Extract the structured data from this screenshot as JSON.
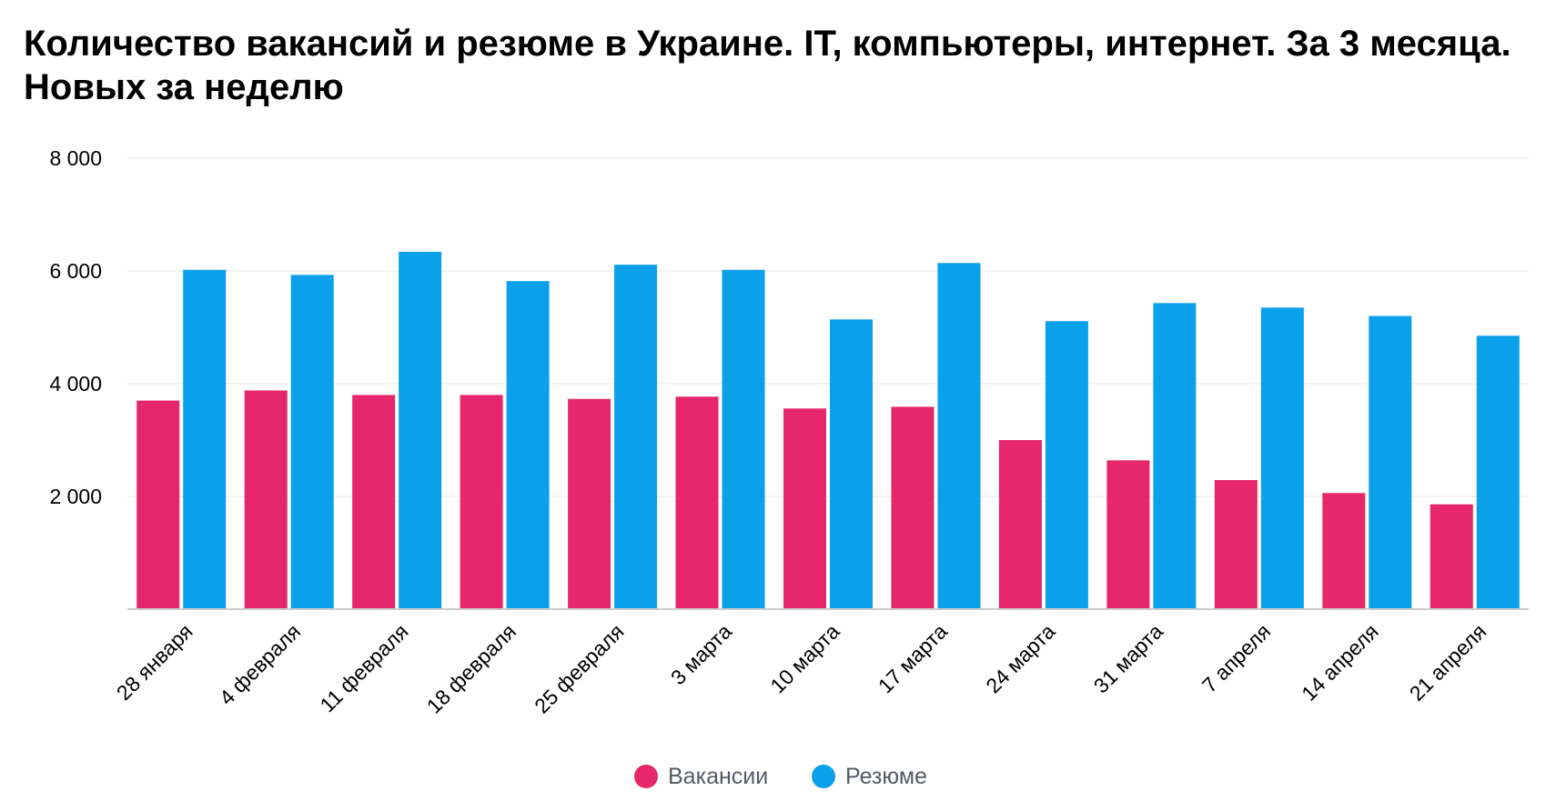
{
  "chart_data": {
    "type": "bar",
    "title": "Количество вакансий и резюме в Украине. IT, компьютеры, интернет. За 3 месяца. Новых за неделю",
    "xlabel": "",
    "ylabel": "",
    "ylim": [
      0,
      8000
    ],
    "yticks": [
      2000,
      4000,
      6000,
      8000
    ],
    "ytick_labels": [
      "2 000",
      "4 000",
      "6 000",
      "8 000"
    ],
    "grid": true,
    "legend_position": "bottom-center",
    "categories": [
      "28 января",
      "4 февраля",
      "11 февраля",
      "18 февраля",
      "25 февраля",
      "3 марта",
      "10 марта",
      "17 марта",
      "24 марта",
      "31 марта",
      "7 апреля",
      "14 апреля",
      "21 апреля"
    ],
    "series": [
      {
        "name": "Вакансии",
        "color": "#e6276b",
        "values": [
          3700,
          3880,
          3800,
          3800,
          3730,
          3770,
          3560,
          3590,
          3000,
          2640,
          2290,
          2060,
          1860
        ]
      },
      {
        "name": "Резюме",
        "color": "#0aa0ea",
        "values": [
          6020,
          5930,
          6340,
          5820,
          6110,
          6020,
          5140,
          6140,
          5110,
          5430,
          5350,
          5200,
          4850
        ]
      }
    ]
  }
}
